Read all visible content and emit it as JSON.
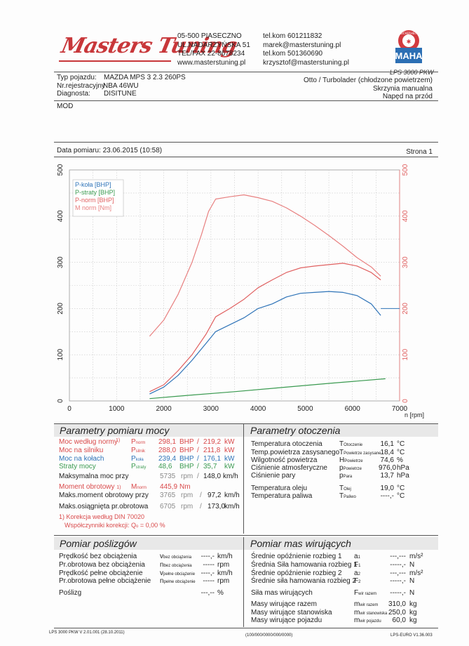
{
  "header": {
    "logo_text": "Masters Tuning",
    "address": [
      "05-500 PIASECZNO",
      "UL.NADARZYŃSKA 51",
      "TEL/FAX 22-8678234",
      "www.masterstuning.pl"
    ],
    "contacts": [
      "tel.kom 601211832",
      "marek@masterstuning.pl",
      "tel.kom 501360690",
      "krzysztof@masterstuning.pl"
    ],
    "maha_label": "MAHA",
    "maha_ring": "SICHERHEIT",
    "lps_label": "LPS 3000 PKW"
  },
  "vehicle": {
    "type_label": "Typ pojazdu:",
    "type_value": "MAZDA MPS 3 2.3 260PS",
    "reg_label": "Nr.rejestracyjny",
    "reg_value": "NBA 46WU",
    "diag_label": "Diagnosta:",
    "diag_value": "DISITUNE",
    "engine": "Otto / Turbolader (chłodzone powietrzem)",
    "gearbox": "Skrzynia manualna",
    "drive": "Napęd na przód",
    "mod": "MOD"
  },
  "measure": {
    "date_label": "Data pomiaru: 23.06.2015 (10:58)",
    "page_label": "Strona 1"
  },
  "chart_data": {
    "type": "line",
    "xlabel": "n [rpm]",
    "xlim": [
      0,
      7000
    ],
    "x_ticks": [
      "0",
      "1000",
      "2000",
      "3000",
      "4000",
      "5000",
      "6000",
      "7000"
    ],
    "ylim": [
      0,
      500
    ],
    "y_ticks_left": [
      "0",
      "100",
      "200",
      "300",
      "400",
      "500"
    ],
    "y_ticks_right": [
      "0",
      "100",
      "200",
      "300",
      "400",
      "500"
    ],
    "grid": true,
    "legend_position": "top-left",
    "series": [
      {
        "name": "P-koła [BHP]",
        "color": "#2f74b8",
        "x": [
          1700,
          2000,
          2300,
          2600,
          2900,
          3100,
          3400,
          3700,
          4000,
          4300,
          4600,
          4900,
          5200,
          5500,
          5800,
          6100,
          6400,
          6600
        ],
        "y": [
          15,
          30,
          55,
          88,
          125,
          150,
          165,
          180,
          200,
          210,
          225,
          233,
          235,
          237,
          235,
          228,
          210,
          185
        ]
      },
      {
        "name": "P-straty [BHP]",
        "color": "#3a9a50",
        "x": [
          1700,
          2500,
          3500,
          4500,
          5500,
          6700
        ],
        "y": [
          5,
          12,
          20,
          29,
          38,
          48
        ]
      },
      {
        "name": "P-norm [BHP]",
        "color": "#e06060",
        "x": [
          1700,
          2000,
          2300,
          2600,
          2900,
          3100,
          3400,
          3700,
          4000,
          4300,
          4600,
          4900,
          5200,
          5500,
          5800,
          6100,
          6400,
          6600
        ],
        "y": [
          20,
          35,
          65,
          100,
          145,
          182,
          200,
          220,
          245,
          262,
          278,
          288,
          292,
          295,
          298,
          292,
          278,
          262
        ]
      },
      {
        "name": "M norm [Nm]",
        "color": "#e88080",
        "x": [
          1700,
          2000,
          2300,
          2600,
          2800,
          2950,
          3100,
          3400,
          3700,
          4000,
          4300,
          4600,
          4900,
          5200,
          5500,
          5800,
          6100,
          6400,
          6600
        ],
        "y": [
          140,
          175,
          230,
          300,
          360,
          410,
          437,
          442,
          446,
          440,
          432,
          418,
          400,
          380,
          358,
          335,
          310,
          290,
          270
        ]
      }
    ],
    "ref_line_y": 200
  },
  "params": {
    "title": "Parametry pomiaru mocy",
    "rows": [
      {
        "label": "Moc według normy",
        "note": "1)",
        "sym": "P",
        "sub": "norm",
        "v1": "298,1",
        "u1": "BHP",
        "v2": "219,2",
        "u2": "kW",
        "cls": "red"
      },
      {
        "label": "Moc na silniku",
        "note": "",
        "sym": "P",
        "sub": "silnik",
        "v1": "288,0",
        "u1": "BHP",
        "v2": "211,8",
        "u2": "kW",
        "cls": "red"
      },
      {
        "label": "Moc na kołach",
        "note": "",
        "sym": "P",
        "sub": "koła",
        "v1": "239,4",
        "u1": "BHP",
        "v2": "176,1",
        "u2": "kW",
        "cls": "blue"
      },
      {
        "label": "Straty mocy",
        "note": "",
        "sym": "P",
        "sub": "straty",
        "v1": "48,6",
        "u1": "BHP",
        "v2": "35,7",
        "u2": "kW",
        "cls": "green"
      }
    ],
    "max_power_label": "Maksymalna moc przy",
    "max_power_rpm": "5735",
    "max_power_rpm_unit": "rpm",
    "max_power_speed": "148,0",
    "max_power_speed_unit": "km/h",
    "torque_label": "Moment obrotowy",
    "torque_note": "1)",
    "torque_sym": "M",
    "torque_sub": "norm",
    "torque_value": "445,9",
    "torque_unit": "Nm",
    "max_torque_label": "Maks.moment obrotowy przy",
    "max_torque_rpm": "3765",
    "max_torque_rpm_unit": "rpm",
    "max_torque_speed": "97,2",
    "max_torque_speed_unit": "km/h",
    "max_rpm_label": "Maks.osiągnięta pr.obrotowa",
    "max_rpm": "6705",
    "max_rpm_unit": "rpm",
    "max_rpm_speed": "173,0",
    "max_rpm_speed_unit": "km/h",
    "din_note": "1) Korekcja według DIN 70020",
    "corr_label": "Współczynniki korekcji: Q",
    "corr_sub": "o",
    "corr_value": "=   0,00 %"
  },
  "ambient": {
    "title": "Parametry otoczenia",
    "rows": [
      {
        "label": "Temperatura otoczenia",
        "sym": "T",
        "sub": "Otoczenie",
        "value": "16,1",
        "unit": "°C"
      },
      {
        "label": "Temp.powietrza zasysanego",
        "sym": "T",
        "sub": "Powietrze zasysane",
        "value": "18,4",
        "unit": "°C"
      },
      {
        "label": "Wilgotność powietrza",
        "sym": "H",
        "sub": "Powietrze",
        "value": "74,6",
        "unit": "%"
      },
      {
        "label": "Ciśnienie atmosferyczne",
        "sym": "p",
        "sub": "Powietrze",
        "value": "976,0",
        "unit": "hPa"
      },
      {
        "label": "Ciśnienie pary",
        "sym": "p",
        "sub": "Para",
        "value": "13,7",
        "unit": "hPa"
      },
      {
        "label": "Temperatura oleju",
        "sym": "T",
        "sub": "Olej",
        "value": "19,0",
        "unit": "°C"
      },
      {
        "label": "Temperatura paliwa",
        "sym": "T",
        "sub": "Paliwo",
        "value": "----,-",
        "unit": "°C"
      }
    ]
  },
  "slip": {
    "title": "Pomiar poślizgów",
    "rows": [
      {
        "label": "Prędkość bez obciążenia",
        "sym": "v",
        "sub": "bez obciążenia",
        "value": "----,-",
        "unit": "km/h"
      },
      {
        "label": "Pr.obrotowa bez obciążenia",
        "sym": "n",
        "sub": "bez obciążenia",
        "value": "-----",
        "unit": "rpm"
      },
      {
        "label": "Prędkość pełne obciążenie",
        "sym": "v",
        "sub": "pełne obciążenie",
        "value": "----,-",
        "unit": "km/h"
      },
      {
        "label": "Pr.obrotowa pełne obciążenie",
        "sym": "n",
        "sub": "pełne obciążenie",
        "value": "-----",
        "unit": "rpm"
      },
      {
        "label": "Poślizg",
        "sym": "",
        "sub": "",
        "value": "---,--",
        "unit": "%"
      }
    ]
  },
  "mass": {
    "title": "Pomiar mas wirujących",
    "rows": [
      {
        "label": "Średnie opóźnienie rozbieg 1",
        "sym": "a",
        "sub": "1",
        "value": "---,---",
        "unit": "m/s²"
      },
      {
        "label": "Średnia Siła hamowania rozbieg 1",
        "sym": "F",
        "sub": "1",
        "value": "-----,-",
        "unit": "N"
      },
      {
        "label": "Średnie opóźnienie rozbieg 2",
        "sym": "a",
        "sub": "2",
        "value": "---,---",
        "unit": "m/s²"
      },
      {
        "label": "Średnie siła hamowania rozbieg 2",
        "sym": "F",
        "sub": "2",
        "value": "-----,-",
        "unit": "N"
      },
      {
        "label": "Siła mas wirujących",
        "sym": "F",
        "sub": "wir razem",
        "value": "-----,-",
        "unit": "N"
      },
      {
        "label": "Masy wirujące razem",
        "sym": "m",
        "sub": "wir razem",
        "value": "310,0",
        "unit": "kg"
      },
      {
        "label": "Masy wirujące stanowiska",
        "sym": "m",
        "sub": "wir stanowiska",
        "value": "250,0",
        "unit": "kg"
      },
      {
        "label": "Masy wirujące pojazdu",
        "sym": "m",
        "sub": "wir pojazdu",
        "value": "60,0",
        "unit": "kg"
      }
    ]
  },
  "footer": {
    "left": "LPS 3000 PKW V 2.01.001 (28.10.2011)",
    "center": "(100/000/0000/000/0000)",
    "right": "LPS-EURO V1.36.003"
  }
}
